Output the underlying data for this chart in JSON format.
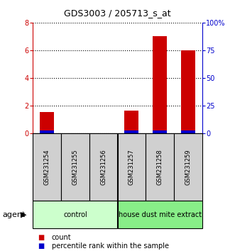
{
  "title": "GDS3003 / 205713_s_at",
  "samples": [
    "GSM231254",
    "GSM231255",
    "GSM231256",
    "GSM231257",
    "GSM231258",
    "GSM231259"
  ],
  "count_values": [
    1.5,
    0.0,
    0.0,
    1.6,
    7.0,
    6.0
  ],
  "percentile_values": [
    0.18,
    0.0,
    0.0,
    0.18,
    0.18,
    0.18
  ],
  "groups": [
    {
      "label": "control",
      "indices": [
        0,
        1,
        2
      ],
      "color": "#ccffcc"
    },
    {
      "label": "house dust mite extract",
      "indices": [
        3,
        4,
        5
      ],
      "color": "#88ee88"
    }
  ],
  "ylim_left": [
    0,
    8
  ],
  "ylim_right": [
    0,
    100
  ],
  "yticks_left": [
    0,
    2,
    4,
    6,
    8
  ],
  "yticks_right": [
    0,
    25,
    50,
    75,
    100
  ],
  "ytick_labels_right": [
    "0",
    "25",
    "50",
    "75",
    "100%"
  ],
  "left_axis_color": "#cc0000",
  "right_axis_color": "#0000cc",
  "bar_color_red": "#cc0000",
  "bar_color_blue": "#0000cc",
  "agent_label": "agent",
  "legend_count": "count",
  "legend_percentile": "percentile rank within the sample",
  "bg_color": "#ffffff",
  "plot_bg_color": "#ffffff",
  "sample_box_color": "#d0d0d0",
  "bar_width": 0.5,
  "title_fontsize": 9,
  "tick_fontsize": 7,
  "sample_fontsize": 6,
  "group_fontsize": 7,
  "legend_fontsize": 7,
  "agent_fontsize": 8
}
